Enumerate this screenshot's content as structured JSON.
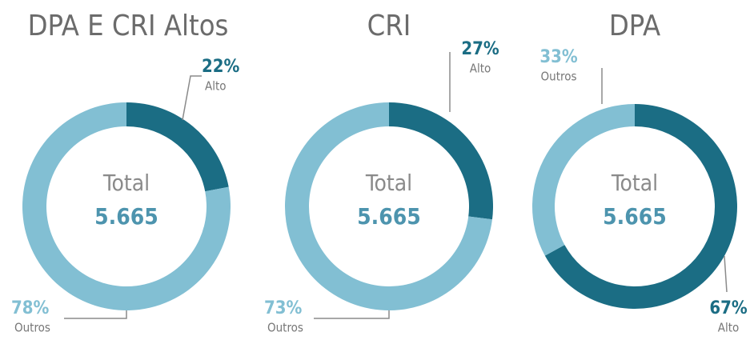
{
  "chart_data": [
    {
      "type": "pie",
      "title": "DPA E CRI Altos",
      "center_label": "Total",
      "center_value": "5.665",
      "categories": [
        "Alto",
        "Outros"
      ],
      "values": [
        22,
        78
      ],
      "value_labels": [
        "22%",
        "78%"
      ],
      "colors": [
        "#1b6d84",
        "#82bfd3"
      ]
    },
    {
      "type": "pie",
      "title": "CRI",
      "center_label": "Total",
      "center_value": "5.665",
      "categories": [
        "Alto",
        "Outros"
      ],
      "values": [
        27,
        73
      ],
      "value_labels": [
        "27%",
        "73%"
      ],
      "colors": [
        "#1b6d84",
        "#82bfd3"
      ]
    },
    {
      "type": "pie",
      "title": "DPA",
      "center_label": "Total",
      "center_value": "5.665",
      "categories": [
        "Alto",
        "Outros"
      ],
      "values": [
        67,
        33
      ],
      "value_labels": [
        "67%",
        "33%"
      ],
      "colors": [
        "#1b6d84",
        "#82bfd3"
      ]
    }
  ]
}
